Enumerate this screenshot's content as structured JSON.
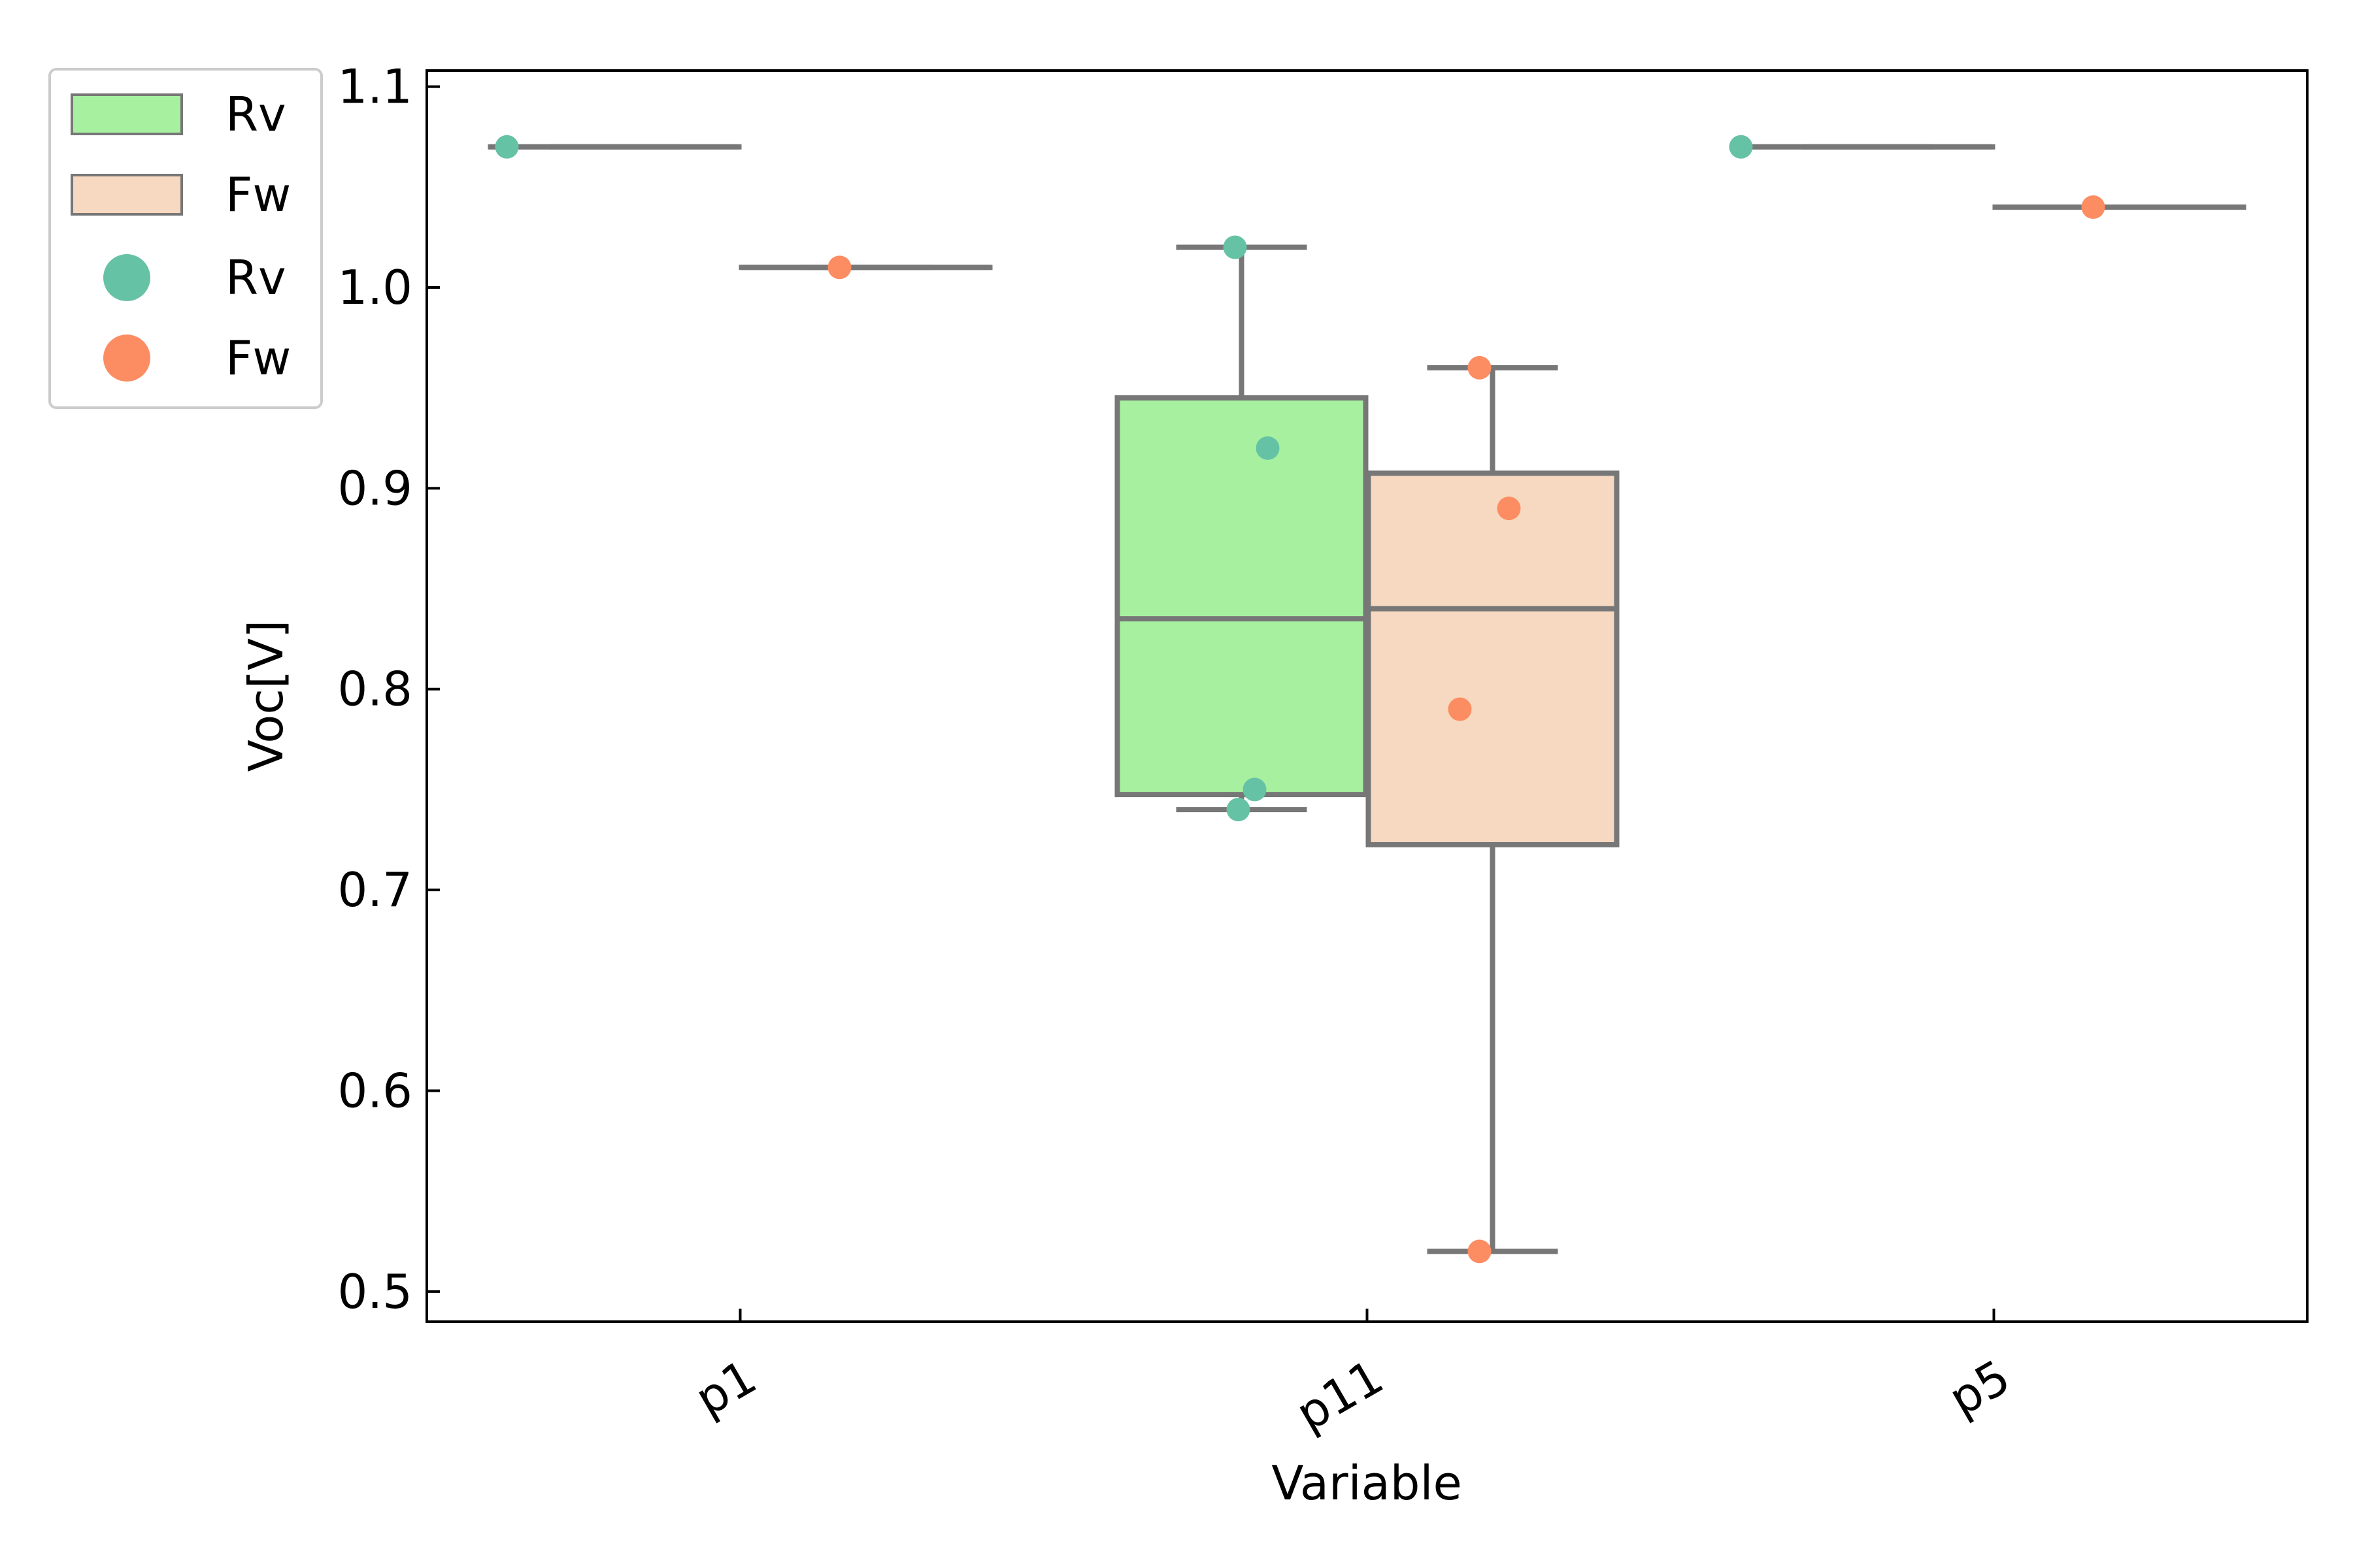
{
  "chart_data": {
    "type": "box",
    "title": "",
    "xlabel": "Variable",
    "ylabel": "Voc[V]",
    "categories": [
      "p1",
      "p11",
      "p5"
    ],
    "ylim": [
      0.485,
      1.108
    ],
    "yticks": [
      "0.5",
      "0.6",
      "0.7",
      "0.8",
      "0.9",
      "1.0",
      "1.1"
    ],
    "grid": false,
    "legend_position": "upper-left-outside",
    "colors": {
      "Rv_box": "#a6f0a0",
      "Fw_box": "#f7d9c1",
      "Rv_point": "#66c2a5",
      "Fw_point": "#fc8d62",
      "line": "#777777"
    },
    "series": [
      {
        "name": "Rv",
        "boxes": [
          {
            "category": "p1",
            "min": 1.07,
            "q1": 1.07,
            "median": 1.07,
            "q3": 1.07,
            "max": 1.07
          },
          {
            "category": "p11",
            "min": 0.74,
            "q1": 0.7475,
            "median": 0.835,
            "q3": 0.945,
            "max": 1.02
          },
          {
            "category": "p5",
            "min": 1.07,
            "q1": 1.07,
            "median": 1.07,
            "q3": 1.07,
            "max": 1.07
          }
        ],
        "points": [
          {
            "category": "p1",
            "y": 1.07
          },
          {
            "category": "p11",
            "y": 1.02
          },
          {
            "category": "p11",
            "y": 0.92
          },
          {
            "category": "p11",
            "y": 0.75
          },
          {
            "category": "p11",
            "y": 0.74
          },
          {
            "category": "p5",
            "y": 1.07
          }
        ]
      },
      {
        "name": "Fw",
        "boxes": [
          {
            "category": "p1",
            "min": 1.01,
            "q1": 1.01,
            "median": 1.01,
            "q3": 1.01,
            "max": 1.01
          },
          {
            "category": "p11",
            "min": 0.52,
            "q1": 0.7225,
            "median": 0.84,
            "q3": 0.9075,
            "max": 0.96
          },
          {
            "category": "p5",
            "min": 1.04,
            "q1": 1.04,
            "median": 1.04,
            "q3": 1.04,
            "max": 1.04
          }
        ],
        "points": [
          {
            "category": "p1",
            "y": 1.01
          },
          {
            "category": "p11",
            "y": 0.96
          },
          {
            "category": "p11",
            "y": 0.89
          },
          {
            "category": "p11",
            "y": 0.79
          },
          {
            "category": "p11",
            "y": 0.52
          },
          {
            "category": "p5",
            "y": 1.04
          }
        ]
      }
    ],
    "legend": [
      {
        "label": "Rv",
        "marker": "box",
        "color_key": "Rv_box"
      },
      {
        "label": "Fw",
        "marker": "box",
        "color_key": "Fw_box"
      },
      {
        "label": "Rv",
        "marker": "dot",
        "color_key": "Rv_point"
      },
      {
        "label": "Fw",
        "marker": "dot",
        "color_key": "Fw_point"
      }
    ]
  }
}
